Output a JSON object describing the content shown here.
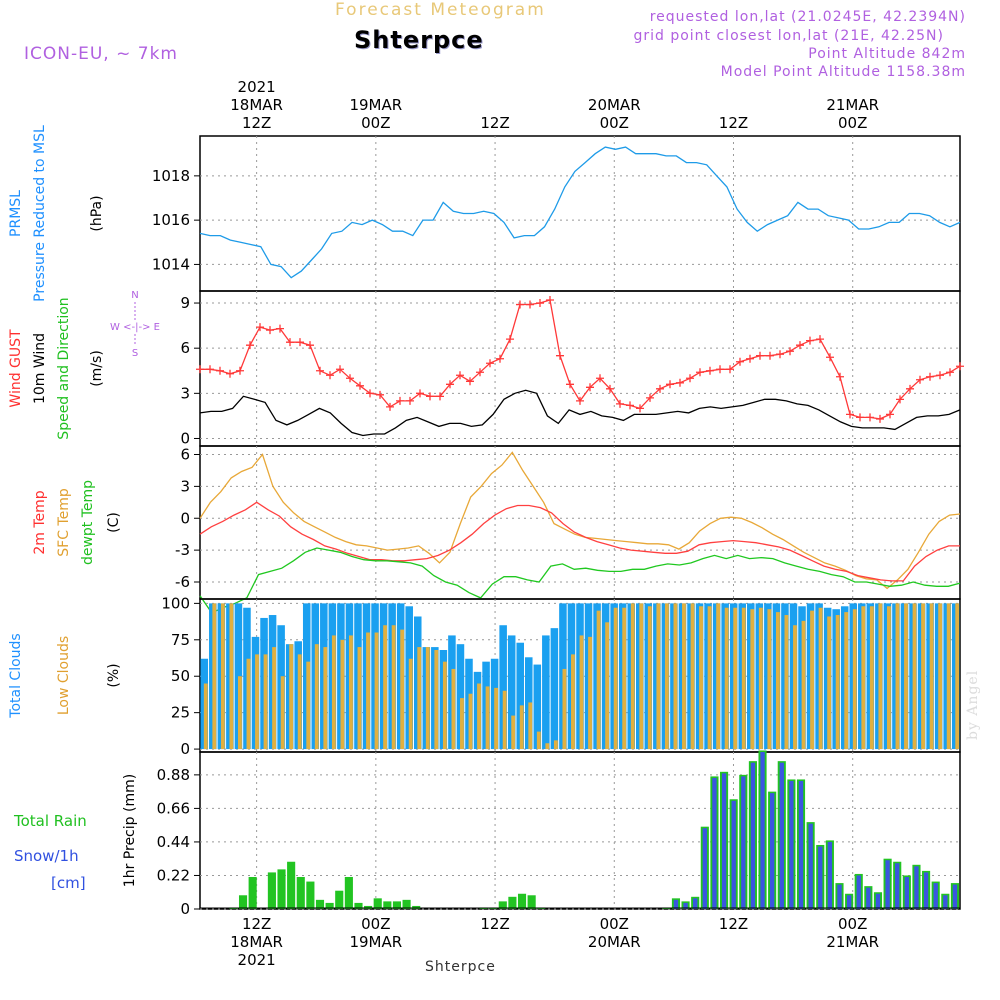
{
  "header": {
    "top_title": "Forecast Meteogram",
    "station_title": "Shterpce",
    "model_label": "ICON-EU, ~ 7km",
    "requested": "requested lon,lat (21.0245E, 42.2394N)",
    "grid_point": "grid point closest lon,lat (21E, 42.25N)",
    "point_alt": "Point Altitude 842m",
    "model_alt": "Model Point Altitude 1158.38m",
    "watermark": "by Angel",
    "bottom_station": "Shterpce",
    "colors": {
      "title": "#e8c878",
      "purple": "#b060e0",
      "station": "#000000"
    }
  },
  "chart_data": [
    {
      "id": "pressure",
      "type": "line",
      "ylabels": [
        {
          "text": "PRMSL",
          "color": "#1e90ff"
        },
        {
          "text": "Pressure Reduced to MSL",
          "color": "#1e90ff"
        },
        {
          "text": "(hPa)",
          "color": "#000000"
        }
      ],
      "ylim": [
        1012.8,
        1019.8
      ],
      "yticks": [
        1014,
        1016,
        1018
      ],
      "series": [
        {
          "color": "#1e9be8",
          "values": [
            1015.4,
            1015.3,
            1015.3,
            1015.1,
            1015.0,
            1014.9,
            1014.8,
            1014.0,
            1013.9,
            1013.4,
            1013.7,
            1014.2,
            1014.7,
            1015.4,
            1015.5,
            1015.9,
            1015.8,
            1016.0,
            1015.8,
            1015.5,
            1015.5,
            1015.3,
            1016.0,
            1016.0,
            1016.8,
            1016.4,
            1016.3,
            1016.3,
            1016.4,
            1016.3,
            1015.9,
            1015.2,
            1015.3,
            1015.3,
            1015.7,
            1016.5,
            1017.5,
            1018.2,
            1018.6,
            1019.0,
            1019.3,
            1019.2,
            1019.3,
            1019.0,
            1019.0,
            1019.0,
            1018.9,
            1018.9,
            1018.6,
            1018.6,
            1018.5,
            1018.0,
            1017.5,
            1016.5,
            1015.9,
            1015.5,
            1015.8,
            1016.0,
            1016.2,
            1016.8,
            1016.5,
            1016.5,
            1016.2,
            1016.1,
            1016.0,
            1015.6,
            1015.6,
            1015.7,
            1015.9,
            1015.9,
            1016.3,
            1016.3,
            1016.2,
            1015.9,
            1015.7,
            1015.9
          ]
        }
      ]
    },
    {
      "id": "wind",
      "type": "line",
      "ylabels": [
        {
          "text": "Wind GUST",
          "color": "#ff3030"
        },
        {
          "text": "10m Wind",
          "color": "#000000"
        },
        {
          "text": "Speed and Direction",
          "color": "#20c020"
        },
        {
          "text": "(m/s)",
          "color": "#000000"
        }
      ],
      "compass": {
        "n": "N",
        "s": "S",
        "w": "W <-|-> E",
        "color": "#b060e0"
      },
      "ylim": [
        -0.5,
        9.8
      ],
      "yticks": [
        0,
        3,
        6,
        9
      ],
      "series": [
        {
          "color": "#ff3838",
          "marker": "plus",
          "values": [
            4.6,
            4.6,
            4.5,
            4.3,
            4.5,
            6.2,
            7.4,
            7.2,
            7.3,
            6.4,
            6.4,
            6.2,
            4.5,
            4.2,
            4.6,
            4.0,
            3.5,
            3.0,
            2.9,
            2.1,
            2.5,
            2.5,
            3.0,
            2.8,
            2.8,
            3.6,
            4.2,
            3.8,
            4.4,
            5.0,
            5.3,
            6.6,
            8.9,
            8.9,
            9.0,
            9.2,
            5.5,
            3.6,
            2.5,
            3.4,
            4.0,
            3.3,
            2.3,
            2.2,
            2.0,
            2.7,
            3.3,
            3.6,
            3.7,
            4.0,
            4.4,
            4.5,
            4.6,
            4.6,
            5.1,
            5.3,
            5.5,
            5.5,
            5.6,
            5.8,
            6.2,
            6.5,
            6.6,
            5.4,
            4.1,
            1.6,
            1.4,
            1.4,
            1.3,
            1.6,
            2.6,
            3.3,
            3.9,
            4.1,
            4.2,
            4.4,
            4.8
          ]
        },
        {
          "color": "#000000",
          "values": [
            1.7,
            1.8,
            1.8,
            2.0,
            2.8,
            2.6,
            2.4,
            1.2,
            0.9,
            1.2,
            1.6,
            2.0,
            1.7,
            1.0,
            0.4,
            0.2,
            0.3,
            0.3,
            0.7,
            1.2,
            1.4,
            1.1,
            0.8,
            1.0,
            1.0,
            0.8,
            0.9,
            1.6,
            2.6,
            3.0,
            3.2,
            3.0,
            1.5,
            1.0,
            1.9,
            1.6,
            1.8,
            1.5,
            1.4,
            1.2,
            1.6,
            1.6,
            1.6,
            1.7,
            1.8,
            1.7,
            2.0,
            2.1,
            2.0,
            2.1,
            2.2,
            2.4,
            2.6,
            2.6,
            2.5,
            2.3,
            2.2,
            1.9,
            1.5,
            1.1,
            0.8,
            0.7,
            0.7,
            0.7,
            0.6,
            1.0,
            1.4,
            1.5,
            1.5,
            1.6,
            1.9
          ]
        }
      ]
    },
    {
      "id": "temperature",
      "type": "line",
      "ylabels": [
        {
          "text": "2m Temp",
          "color": "#ff3030"
        },
        {
          "text": "SFC Temp",
          "color": "#e0a030"
        },
        {
          "text": "dewpt Temp",
          "color": "#20c020"
        },
        {
          "text": "(C)",
          "color": "#000000"
        }
      ],
      "ylim": [
        -7.6,
        6.8
      ],
      "yticks": [
        -6,
        -3,
        0,
        3,
        6
      ],
      "series": [
        {
          "color": "#e8a838",
          "values": [
            0.0,
            1.5,
            2.5,
            3.8,
            4.4,
            4.8,
            6.0,
            3.0,
            1.5,
            0.5,
            -0.3,
            -0.8,
            -1.3,
            -1.8,
            -2.2,
            -2.5,
            -2.6,
            -2.8,
            -3.0,
            -2.9,
            -2.8,
            -2.6,
            -3.3,
            -4.2,
            -3.2,
            -0.5,
            2.0,
            3.0,
            4.2,
            5.0,
            6.2,
            4.5,
            3.0,
            1.5,
            -0.5,
            -1.0,
            -1.5,
            -1.8,
            -1.9,
            -2.0,
            -2.1,
            -2.2,
            -2.3,
            -2.4,
            -2.4,
            -2.5,
            -2.9,
            -2.3,
            -1.2,
            -0.5,
            0.0,
            0.1,
            0.0,
            -0.4,
            -0.9,
            -1.5,
            -2.0,
            -2.6,
            -3.2,
            -3.7,
            -4.2,
            -4.5,
            -4.9,
            -5.4,
            -5.7,
            -5.8,
            -6.6,
            -5.8,
            -4.8,
            -3.2,
            -1.5,
            -0.3,
            0.3,
            0.4
          ]
        },
        {
          "color": "#ff4040",
          "values": [
            -1.5,
            -0.8,
            -0.3,
            0.3,
            0.8,
            1.5,
            0.8,
            0.2,
            -0.8,
            -1.5,
            -2.0,
            -2.6,
            -2.9,
            -3.3,
            -3.6,
            -3.9,
            -3.9,
            -4.0,
            -4.0,
            -3.9,
            -3.8,
            -3.5,
            -3.0,
            -2.3,
            -1.5,
            -0.5,
            0.3,
            0.9,
            1.2,
            1.2,
            1.0,
            0.5,
            -0.5,
            -1.3,
            -1.8,
            -2.2,
            -2.5,
            -2.8,
            -3.0,
            -3.1,
            -3.2,
            -3.3,
            -3.3,
            -3.1,
            -2.5,
            -2.3,
            -2.2,
            -2.1,
            -2.2,
            -2.3,
            -2.5,
            -2.7,
            -3.0,
            -3.5,
            -4.0,
            -4.5,
            -4.8,
            -5.0,
            -5.4,
            -5.6,
            -5.8,
            -5.9,
            -5.9,
            -4.5,
            -3.6,
            -3.0,
            -2.6,
            -2.6
          ]
        },
        {
          "color": "#20c820",
          "values": [
            -7.3,
            -8.9,
            -8.4,
            -8.0,
            -7.5,
            -5.3,
            -5.0,
            -4.7,
            -4.0,
            -3.2,
            -2.8,
            -3.0,
            -3.2,
            -3.6,
            -3.9,
            -4.0,
            -4.0,
            -4.1,
            -4.2,
            -4.5,
            -5.4,
            -6.0,
            -6.3,
            -7.0,
            -7.5,
            -6.2,
            -5.5,
            -5.5,
            -5.8,
            -6.0,
            -4.5,
            -4.3,
            -4.8,
            -4.7,
            -4.9,
            -5.0,
            -5.0,
            -4.8,
            -4.8,
            -4.5,
            -4.3,
            -4.4,
            -4.2,
            -3.8,
            -3.5,
            -3.8,
            -3.5,
            -3.8,
            -3.7,
            -3.8,
            -4.2,
            -4.5,
            -4.8,
            -5.0,
            -5.3,
            -5.5,
            -6.0,
            -6.0,
            -6.2,
            -6.4,
            -6.3,
            -6.0,
            -6.3,
            -6.4,
            -6.4,
            -6.1
          ]
        }
      ]
    },
    {
      "id": "clouds",
      "type": "bar",
      "ylabels": [
        {
          "text": "Total Clouds",
          "color": "#1e90ff"
        },
        {
          "text": "Low Clouds",
          "color": "#e0a030"
        },
        {
          "text": "(%)",
          "color": "#000000"
        }
      ],
      "ylim": [
        -2,
        103
      ],
      "yticks": [
        0,
        25,
        50,
        75,
        100
      ],
      "series": [
        {
          "name": "total",
          "color": "#1aa0f0",
          "values": [
            62,
            100,
            100,
            100,
            100,
            97,
            77,
            90,
            92,
            85,
            72,
            74,
            100,
            100,
            100,
            100,
            100,
            100,
            100,
            100,
            100,
            100,
            100,
            100,
            98,
            91,
            70,
            70,
            68,
            78,
            72,
            62,
            53,
            60,
            62,
            85,
            78,
            73,
            63,
            58,
            78,
            83,
            100,
            100,
            100,
            100,
            100,
            100,
            100,
            100,
            100,
            100,
            100,
            100,
            100,
            100,
            100,
            100,
            100,
            100,
            100,
            100,
            100,
            100,
            100,
            100,
            100,
            100,
            100,
            100,
            98,
            100,
            100,
            97,
            96,
            98,
            100,
            100,
            100,
            100,
            100,
            100,
            100,
            100,
            100,
            100,
            100,
            100,
            100
          ]
        },
        {
          "name": "low",
          "color": "#e0b040",
          "values": [
            45,
            100,
            100,
            100,
            50,
            62,
            65,
            65,
            70,
            50,
            72,
            65,
            60,
            72,
            70,
            78,
            75,
            78,
            70,
            80,
            80,
            85,
            85,
            82,
            62,
            70,
            70,
            68,
            60,
            55,
            35,
            38,
            45,
            43,
            42,
            40,
            23,
            30,
            32,
            12,
            4,
            6,
            55,
            65,
            78,
            77,
            95,
            87,
            97,
            97,
            100,
            100,
            98,
            100,
            100,
            100,
            100,
            100,
            98,
            98,
            100,
            97,
            97,
            97,
            96,
            97,
            96,
            94,
            92,
            85,
            88,
            95,
            97,
            91,
            92,
            94,
            96,
            98,
            98,
            100,
            98,
            100,
            100,
            100,
            100,
            100,
            100,
            100,
            100
          ]
        }
      ]
    },
    {
      "id": "precip",
      "type": "bar",
      "ylabels": [
        {
          "text": "1hr Precip (mm)",
          "color": "#000000"
        }
      ],
      "side_labels": [
        {
          "text": "Total  Rain",
          "color": "#20c020"
        },
        {
          "text": "Snow/1h",
          "color": "#3050e0"
        },
        {
          "text": "[cm]",
          "color": "#3050e0"
        }
      ],
      "ylim": [
        0,
        1.03
      ],
      "yticks": [
        0,
        0.22,
        0.44,
        0.66,
        0.88
      ],
      "ytick_labels": [
        "0",
        "0.22",
        "0.44",
        "0.66",
        "0.88"
      ],
      "series": [
        {
          "name": "rain",
          "color": "#22c422",
          "values": [
            0,
            0,
            0,
            0.01,
            0.09,
            0.21,
            0,
            0.24,
            0.26,
            0.31,
            0.21,
            0.18,
            0.06,
            0.04,
            0.12,
            0.21,
            0.04,
            0.02,
            0.07,
            0.05,
            0.05,
            0.06,
            0.02,
            0,
            0,
            0,
            0,
            0,
            0,
            0.01,
            0.01,
            0.05,
            0.08,
            0.1,
            0.09,
            0.01,
            0,
            0,
            0,
            0,
            0,
            0,
            0,
            0,
            0,
            0,
            0,
            0,
            0.01,
            0.07,
            0.05,
            0.08,
            0.54,
            0.87,
            0.9,
            0.72,
            0.88,
            0.97,
            1.04,
            0.77,
            0.97,
            0.85,
            0.85,
            0.57,
            0.42,
            0.45,
            0.17,
            0.1,
            0.23,
            0.15,
            0.11,
            0.33,
            0.31,
            0.22,
            0.29,
            0.25,
            0.18,
            0.1,
            0.17
          ]
        },
        {
          "name": "snow",
          "color": "#3a56e0",
          "values": [
            0,
            0,
            0,
            0,
            0,
            0,
            0,
            0,
            0,
            0,
            0,
            0,
            0,
            0,
            0,
            0,
            0,
            0,
            0,
            0,
            0,
            0,
            0,
            0,
            0,
            0,
            0,
            0,
            0,
            0,
            0,
            0,
            0,
            0,
            0,
            0,
            0,
            0,
            0,
            0,
            0,
            0,
            0,
            0,
            0,
            0,
            0,
            0,
            0,
            0.06,
            0.04,
            0.07,
            0.53,
            0.86,
            0.89,
            0.71,
            0.87,
            0.96,
            1.03,
            0.76,
            0.96,
            0.84,
            0.84,
            0.56,
            0.41,
            0.44,
            0.16,
            0.09,
            0.22,
            0.14,
            0.1,
            0.32,
            0.3,
            0.21,
            0.28,
            0.24,
            0.17,
            0.09,
            0.16
          ]
        }
      ]
    }
  ],
  "time_axis": {
    "top": [
      {
        "lines": [
          "2021",
          "18MAR",
          "12Z"
        ],
        "t": 12
      },
      {
        "lines": [
          "19MAR",
          "00Z"
        ],
        "t": 24
      },
      {
        "lines": [
          "12Z"
        ],
        "t": 36
      },
      {
        "lines": [
          "20MAR",
          "00Z"
        ],
        "t": 48
      },
      {
        "lines": [
          "12Z"
        ],
        "t": 60
      },
      {
        "lines": [
          "21MAR",
          "00Z"
        ],
        "t": 72
      }
    ],
    "bottom": [
      {
        "lines": [
          "12Z",
          "18MAR",
          "2021"
        ],
        "t": 12
      },
      {
        "lines": [
          "00Z",
          "19MAR"
        ],
        "t": 24
      },
      {
        "lines": [
          "12Z"
        ],
        "t": 36
      },
      {
        "lines": [
          "00Z",
          "20MAR"
        ],
        "t": 48
      },
      {
        "lines": [
          "12Z"
        ],
        "t": 60
      },
      {
        "lines": [
          "00Z",
          "21MAR"
        ],
        "t": 72
      }
    ],
    "t_range": [
      6.3,
      82.8
    ]
  }
}
